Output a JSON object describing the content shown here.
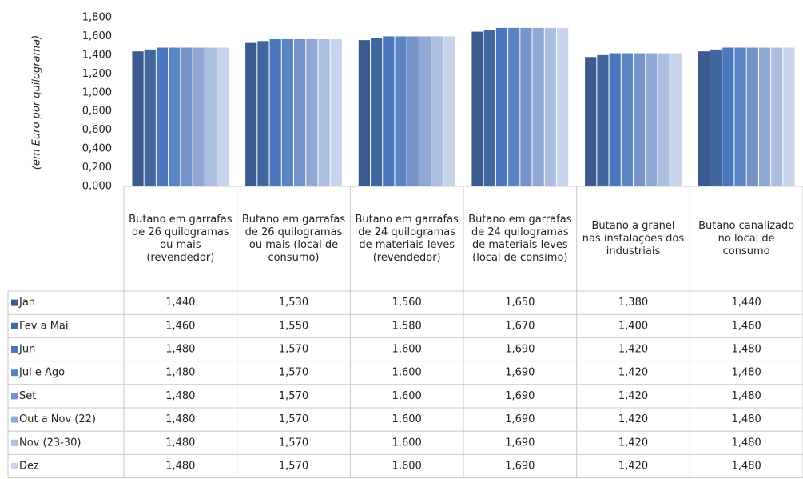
{
  "chart_data": {
    "type": "bar",
    "y_label": "(em Euro por quilograma)",
    "categories": [
      "Butano em garrafas de 26 quilogramas ou mais (revendedor)",
      "Butano em garrafas de 26 quilogramas ou mais (local de consumo)",
      "Butano em garrafas de 24 quilogramas de materiais leves (revendedor)",
      "Butano em garrafas de 24 quilogramas de materiais leves (local de consimo)",
      "Butano a granel nas instalações dos industriais",
      "Butano canalizado no local de consumo"
    ],
    "ylim": [
      0,
      1.8
    ],
    "yticks": [
      {
        "value": 0,
        "label": "0,000"
      },
      {
        "value": 0.2,
        "label": "0,200"
      },
      {
        "value": 0.4,
        "label": "0,400"
      },
      {
        "value": 0.6,
        "label": "0,600"
      },
      {
        "value": 0.8,
        "label": "0,800"
      },
      {
        "value": 1.0,
        "label": "1,000"
      },
      {
        "value": 1.2,
        "label": "1,200"
      },
      {
        "value": 1.4,
        "label": "1,400"
      },
      {
        "value": 1.6,
        "label": "1,600"
      },
      {
        "value": 1.8,
        "label": "1,800"
      }
    ],
    "grid": false,
    "series": [
      {
        "name": "Jan",
        "color": "#3b5b8f",
        "values": [
          1.44,
          1.53,
          1.56,
          1.65,
          1.38,
          1.44
        ],
        "value_labels": [
          "1,440",
          "1,530",
          "1,560",
          "1,650",
          "1,380",
          "1,440"
        ]
      },
      {
        "name": "Fev a Mai",
        "color": "#41679f",
        "values": [
          1.46,
          1.55,
          1.58,
          1.67,
          1.4,
          1.46
        ],
        "value_labels": [
          "1,460",
          "1,550",
          "1,580",
          "1,670",
          "1,400",
          "1,460"
        ]
      },
      {
        "name": "Jun",
        "color": "#4b78bd",
        "values": [
          1.48,
          1.57,
          1.6,
          1.69,
          1.42,
          1.48
        ],
        "value_labels": [
          "1,480",
          "1,570",
          "1,600",
          "1,690",
          "1,420",
          "1,480"
        ]
      },
      {
        "name": "Jul e Ago",
        "color": "#5a85c5",
        "values": [
          1.48,
          1.57,
          1.6,
          1.69,
          1.42,
          1.48
        ],
        "value_labels": [
          "1,480",
          "1,570",
          "1,600",
          "1,690",
          "1,420",
          "1,480"
        ]
      },
      {
        "name": "Set",
        "color": "#7593c9",
        "values": [
          1.48,
          1.57,
          1.6,
          1.69,
          1.42,
          1.48
        ],
        "value_labels": [
          "1,480",
          "1,570",
          "1,600",
          "1,690",
          "1,420",
          "1,480"
        ]
      },
      {
        "name": "Out a Nov (22)",
        "color": "#91a8d5",
        "values": [
          1.48,
          1.57,
          1.6,
          1.69,
          1.42,
          1.48
        ],
        "value_labels": [
          "1,480",
          "1,570",
          "1,600",
          "1,690",
          "1,420",
          "1,480"
        ]
      },
      {
        "name": "Nov (23-30)",
        "color": "#adbfe0",
        "values": [
          1.48,
          1.57,
          1.6,
          1.69,
          1.42,
          1.48
        ],
        "value_labels": [
          "1,480",
          "1,570",
          "1,600",
          "1,690",
          "1,420",
          "1,480"
        ]
      },
      {
        "name": "Dez",
        "color": "#c8d4ea",
        "values": [
          1.48,
          1.57,
          1.6,
          1.69,
          1.42,
          1.48
        ],
        "value_labels": [
          "1,480",
          "1,570",
          "1,600",
          "1,690",
          "1,420",
          "1,480"
        ]
      }
    ]
  }
}
